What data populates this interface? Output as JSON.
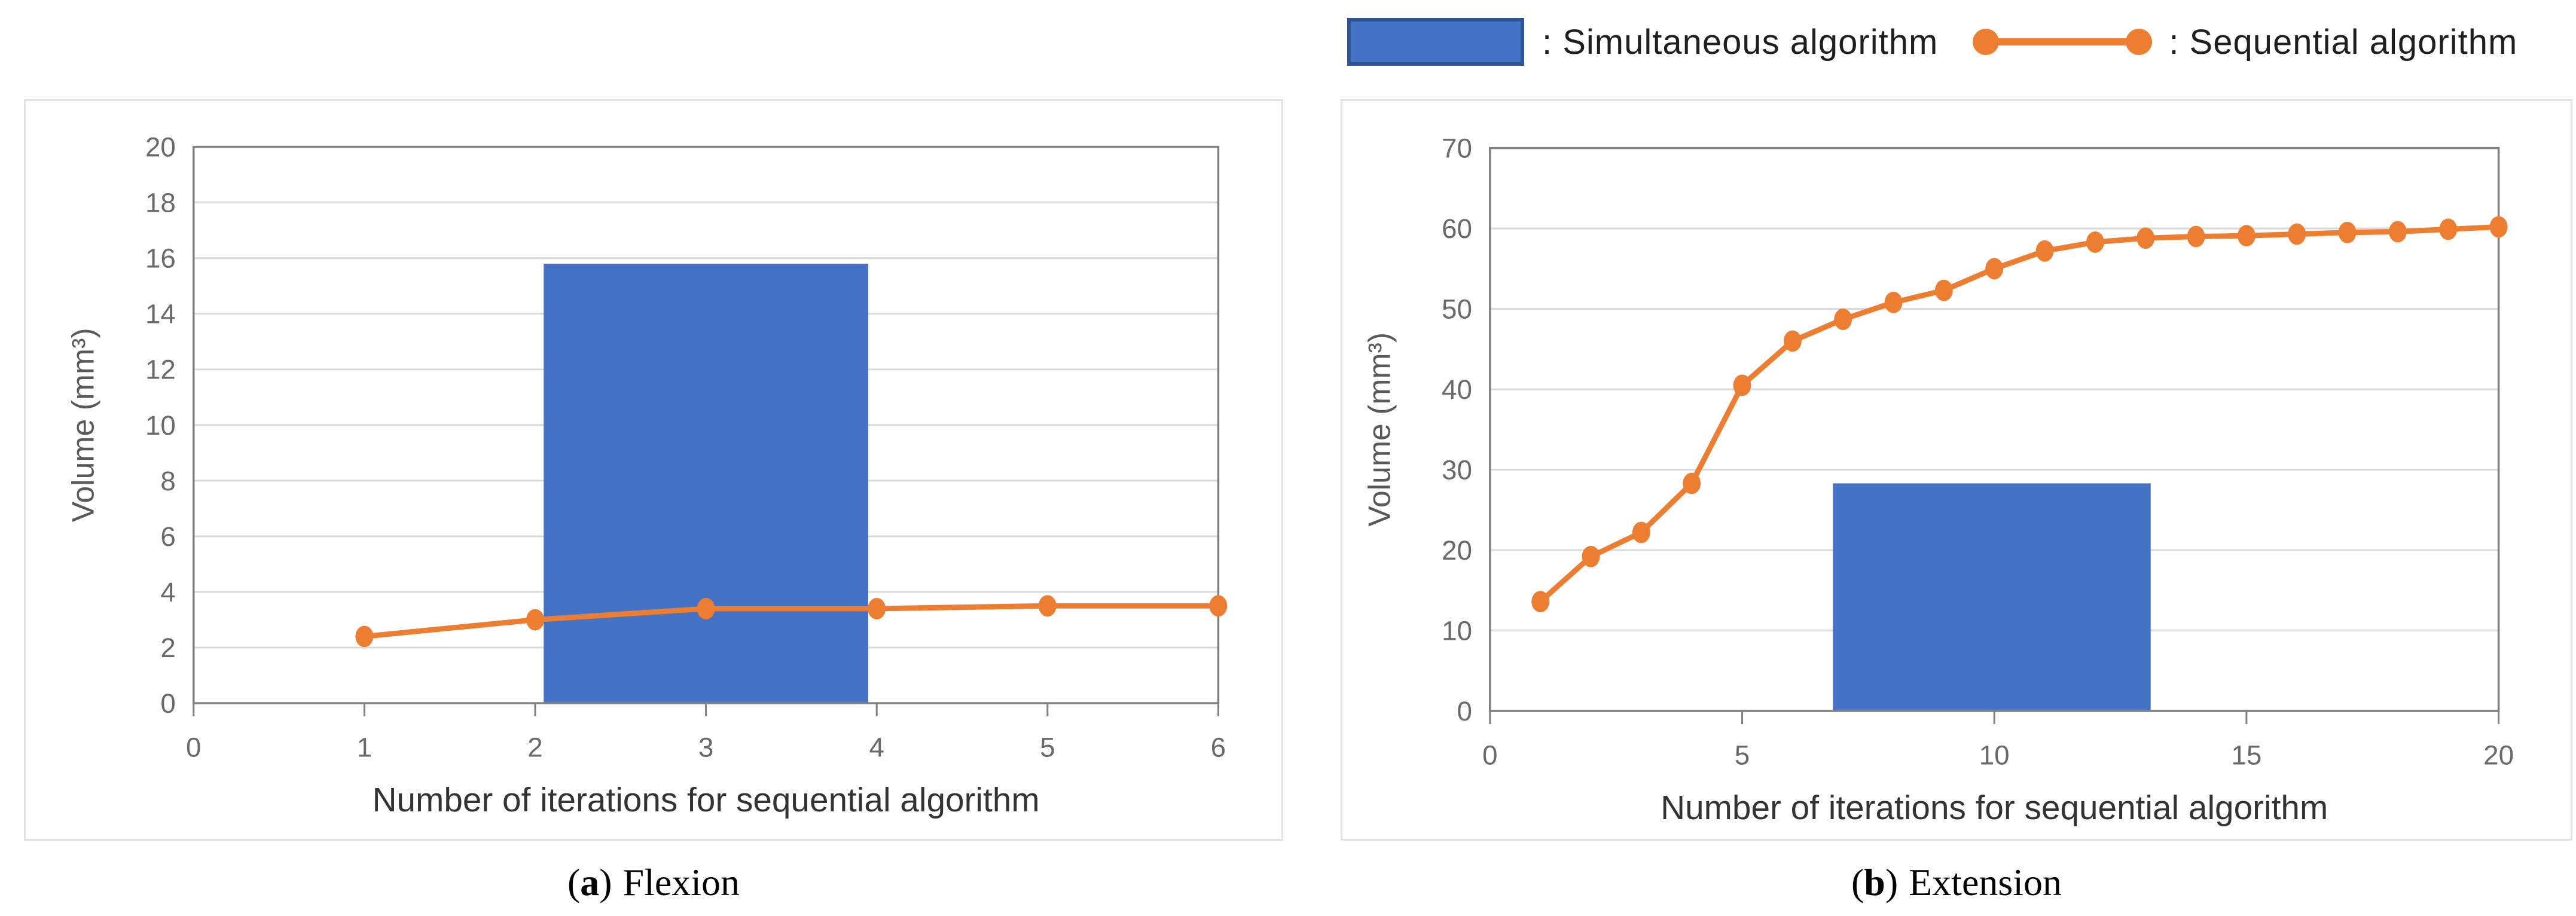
{
  "colors": {
    "bar_fill": "#4472C4",
    "bar_swatch_border": "#2F5597",
    "line": "#ED7D31",
    "grid": "#D9D9D9",
    "axis": "#808080",
    "tick_label": "#696969",
    "x_axis_title": "#333333",
    "y_axis_title": "#595959",
    "panel_border": "#E2E2E2",
    "legend_text": "#1F1F1F"
  },
  "legend": {
    "items": [
      {
        "swatch": "bar",
        "label": ": Simultaneous algorithm"
      },
      {
        "swatch": "line-marker",
        "label": ": Sequential algorithm"
      }
    ]
  },
  "chart_data": [
    {
      "type": "combo-bar-line",
      "caption": {
        "open": "(",
        "letter": "a",
        "close": ")",
        "label": "Flexion"
      },
      "xlabel": "Number of iterations for sequential algorithm",
      "ylabel": "Volume (mm³)",
      "xlim": [
        0,
        6
      ],
      "ylim": [
        0,
        20
      ],
      "xticks": [
        0,
        1,
        2,
        3,
        4,
        5,
        6
      ],
      "yticks": [
        0,
        2,
        4,
        6,
        8,
        10,
        12,
        14,
        16,
        18,
        20
      ],
      "grid": "horizontal",
      "legend_position": "shared-top-right",
      "series": [
        {
          "name": "Simultaneous algorithm",
          "type": "bar",
          "x_start": 2.05,
          "x_end": 3.95,
          "value": 15.8
        },
        {
          "name": "Sequential algorithm",
          "type": "line",
          "x": [
            1,
            2,
            3,
            4,
            5,
            6
          ],
          "y": [
            2.4,
            3.0,
            3.4,
            3.4,
            3.5,
            3.5
          ]
        }
      ]
    },
    {
      "type": "combo-bar-line",
      "caption": {
        "open": "(",
        "letter": "b",
        "close": ")",
        "label": "Extension"
      },
      "xlabel": "Number of iterations for sequential algorithm",
      "ylabel": "Volume (mm³)",
      "xlim": [
        0,
        20
      ],
      "ylim": [
        0,
        70
      ],
      "xticks": [
        0,
        5,
        10,
        15,
        20
      ],
      "yticks": [
        0,
        10,
        20,
        30,
        40,
        50,
        60,
        70
      ],
      "grid": "horizontal",
      "legend_position": "shared-top-right",
      "series": [
        {
          "name": "Simultaneous algorithm",
          "type": "bar",
          "x_start": 6.8,
          "x_end": 13.1,
          "value": 28.3
        },
        {
          "name": "Sequential algorithm",
          "type": "line",
          "x": [
            1,
            2,
            3,
            4,
            5,
            6,
            7,
            8,
            9,
            10,
            11,
            12,
            13,
            14,
            15,
            16,
            17,
            18,
            19,
            20
          ],
          "y": [
            13.6,
            19.2,
            22.2,
            28.3,
            40.5,
            46.0,
            48.7,
            50.8,
            52.3,
            55.0,
            57.2,
            58.3,
            58.8,
            59.0,
            59.1,
            59.3,
            59.5,
            59.6,
            59.9,
            60.2
          ]
        }
      ]
    }
  ]
}
